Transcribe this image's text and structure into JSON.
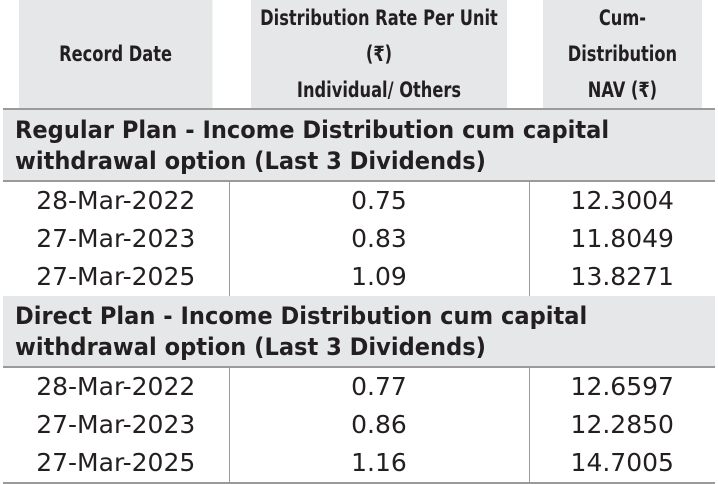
{
  "table": {
    "headers": [
      {
        "lines": [
          "Record Date"
        ]
      },
      {
        "lines": [
          "Distribution Rate Per Unit  (₹)",
          "Individual/ Others"
        ]
      },
      {
        "lines": [
          "Cum-Distribution",
          "NAV (₹)"
        ]
      }
    ],
    "sections": [
      {
        "title": "Regular Plan - Income Distribution cum capital withdrawal option (Last 3 Dividends)",
        "rows": [
          {
            "record_date": "28-Mar-2022",
            "rate": "0.75",
            "nav": "12.3004"
          },
          {
            "record_date": "27-Mar-2023",
            "rate": "0.83",
            "nav": "11.8049"
          },
          {
            "record_date": "27-Mar-2025",
            "rate": "1.09",
            "nav": "13.8271"
          }
        ]
      },
      {
        "title": "Direct Plan - Income Distribution cum capital withdrawal option (Last 3 Dividends)",
        "rows": [
          {
            "record_date": "28-Mar-2022",
            "rate": "0.77",
            "nav": "12.6597"
          },
          {
            "record_date": "27-Mar-2023",
            "rate": "0.86",
            "nav": "12.2850"
          },
          {
            "record_date": "27-Mar-2025",
            "rate": "1.16",
            "nav": "14.7005"
          }
        ]
      }
    ]
  }
}
